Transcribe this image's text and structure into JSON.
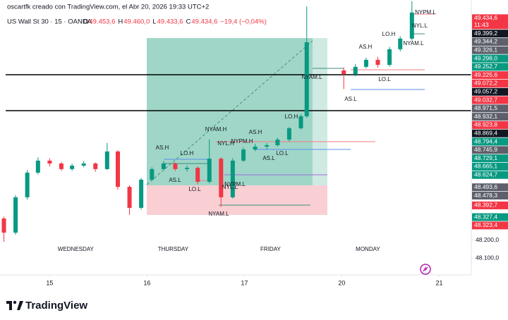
{
  "header": {
    "credit": "oscartfk creado con TradingView.com, el Abr 20, 2026 19:33 UTC+2",
    "symbol": "US Wall St 30 · 15 · OANDA",
    "ohlc": [
      {
        "key": "O",
        "value": "49.453,6"
      },
      {
        "key": "H",
        "value": "49.460,0"
      },
      {
        "key": "L",
        "value": "49.433,6"
      },
      {
        "key": "C",
        "value": "49.434,6"
      }
    ],
    "change": "−19,4 (−0,04%)"
  },
  "chart_data": {
    "type": "candlestick",
    "x": [
      -0.47,
      -0.35,
      -0.23,
      -0.12,
      0,
      0.12,
      0.23,
      0.35,
      0.47,
      0.59,
      0.7,
      0.82,
      0.94,
      1.05,
      1.17,
      1.29,
      1.41,
      1.52,
      1.64,
      1.76,
      1.88,
      1.99,
      2.11,
      2.23,
      2.34,
      2.46,
      2.58,
      2.64,
      3.02,
      3.14,
      3.25,
      3.37,
      3.49,
      3.6,
      3.72
    ],
    "open": [
      48320,
      48241,
      48438,
      48575,
      48642,
      48626,
      48595,
      48614,
      48626,
      48595,
      48693,
      48496,
      48379,
      48536,
      48595,
      48626,
      48595,
      48602,
      48524,
      48653,
      48438,
      48642,
      48704,
      48720,
      48728,
      48759,
      48822,
      48889,
      49144,
      49124,
      49164,
      49203,
      49175,
      49262,
      49321
    ],
    "high": [
      48330,
      48450,
      48590,
      48660,
      48655,
      48635,
      48625,
      48640,
      48632,
      48740,
      48700,
      48505,
      48545,
      48605,
      48640,
      48632,
      48615,
      48610,
      48760,
      48660,
      48655,
      48715,
      48735,
      48740,
      48770,
      48830,
      48900,
      49500,
      49160,
      49180,
      49215,
      49220,
      49275,
      49335,
      49530
    ],
    "low": [
      48190,
      48230,
      48425,
      48565,
      48610,
      48585,
      48585,
      48605,
      48580,
      48590,
      48480,
      48340,
      48370,
      48530,
      48590,
      48585,
      48580,
      48510,
      48515,
      48385,
      48430,
      48635,
      48695,
      48705,
      48720,
      48750,
      48815,
      48880,
      49040,
      49110,
      49155,
      49160,
      49165,
      49250,
      49310
    ],
    "close": [
      48241,
      48438,
      48575,
      48642,
      48626,
      48595,
      48614,
      48626,
      48595,
      48693,
      48496,
      48379,
      48536,
      48595,
      48626,
      48595,
      48602,
      48524,
      48653,
      48438,
      48642,
      48704,
      48720,
      48728,
      48759,
      48822,
      48889,
      49301,
      49124,
      49164,
      49203,
      49175,
      49262,
      49321,
      49466
    ],
    "up_color": "#089981",
    "down_color": "#f23645",
    "xlim": [
      -0.51,
      4.33
    ],
    "xticks": [
      {
        "value": 0,
        "label": "15"
      },
      {
        "value": 1,
        "label": "16"
      },
      {
        "value": 2,
        "label": "17"
      },
      {
        "value": 3,
        "label": "20"
      },
      {
        "value": 4,
        "label": "21"
      }
    ],
    "day_names": [
      "WEDNESDAY",
      "THURSDAY",
      "FRIDAY",
      "MONDAY"
    ],
    "ylim": [
      48006,
      49536
    ],
    "yticks": [
      {
        "value": 48200,
        "label": "48.200,0"
      },
      {
        "value": 48100,
        "label": "48.100,0"
      }
    ],
    "countdown": "11:43",
    "price_labels": [
      {
        "value": 49434.6,
        "label": "49.434,6",
        "color": "#f23645"
      },
      {
        "value": 49399.2,
        "label": "49.399,2",
        "color": "#131722"
      },
      {
        "value": 49344.2,
        "label": "49.344,2",
        "color": "#5d606b"
      },
      {
        "value": 49326.1,
        "label": "49.326,1",
        "color": "#5d606b"
      },
      {
        "value": 49298.0,
        "label": "49.298,0",
        "color": "#089981"
      },
      {
        "value": 49252.7,
        "label": "49.252,7",
        "color": "#089981"
      },
      {
        "value": 49225.6,
        "label": "49.225,6",
        "color": "#f23645"
      },
      {
        "value": 49072.2,
        "label": "49.072,2",
        "color": "#f23645"
      },
      {
        "value": 49057.2,
        "label": "49.057,2",
        "color": "#131722"
      },
      {
        "value": 49032.7,
        "label": "49.032,7",
        "color": "#f23645"
      },
      {
        "value": 48971.5,
        "label": "48.971,5",
        "color": "#5d606b"
      },
      {
        "value": 48932.1,
        "label": "48.932,1",
        "color": "#5d606b"
      },
      {
        "value": 48923.8,
        "label": "48.923,8",
        "color": "#f23645"
      },
      {
        "value": 48869.4,
        "label": "48.869,4",
        "color": "#131722"
      },
      {
        "value": 48794.4,
        "label": "48.794,4",
        "color": "#089981"
      },
      {
        "value": 48745.9,
        "label": "48.745,9",
        "color": "#5d606b"
      },
      {
        "value": 48729.1,
        "label": "48.729,1",
        "color": "#089981"
      },
      {
        "value": 48665.1,
        "label": "48.665,1",
        "color": "#089981"
      },
      {
        "value": 48624.7,
        "label": "48.624,7",
        "color": "#089981"
      },
      {
        "value": 48493.6,
        "label": "48.493,6",
        "color": "#5d606b"
      },
      {
        "value": 48478.3,
        "label": "48.478,3",
        "color": "#5d606b"
      },
      {
        "value": 48392.7,
        "label": "48.392,7",
        "color": "#f23645"
      },
      {
        "value": 48327.4,
        "label": "48.327,4",
        "color": "#089981"
      },
      {
        "value": 48323.4,
        "label": "48.323,4",
        "color": "#f23645"
      }
    ],
    "annotations": [
      "AS.H",
      "LO.H",
      "AS.L",
      "LO.L",
      "NYAM.H",
      "NYL.H",
      "NYPM.H",
      "AS.H",
      "LO.H",
      "LO.L",
      "AS.L",
      "NYPM.L",
      "NYL.L",
      "NYAM.L",
      "NYAM.L",
      "AS.H",
      "LO.H",
      "NYAM.L",
      "NYL.L",
      "NYPM.L",
      "LO.L",
      "AS.L"
    ]
  },
  "footer": {
    "brand": "TradingView"
  }
}
